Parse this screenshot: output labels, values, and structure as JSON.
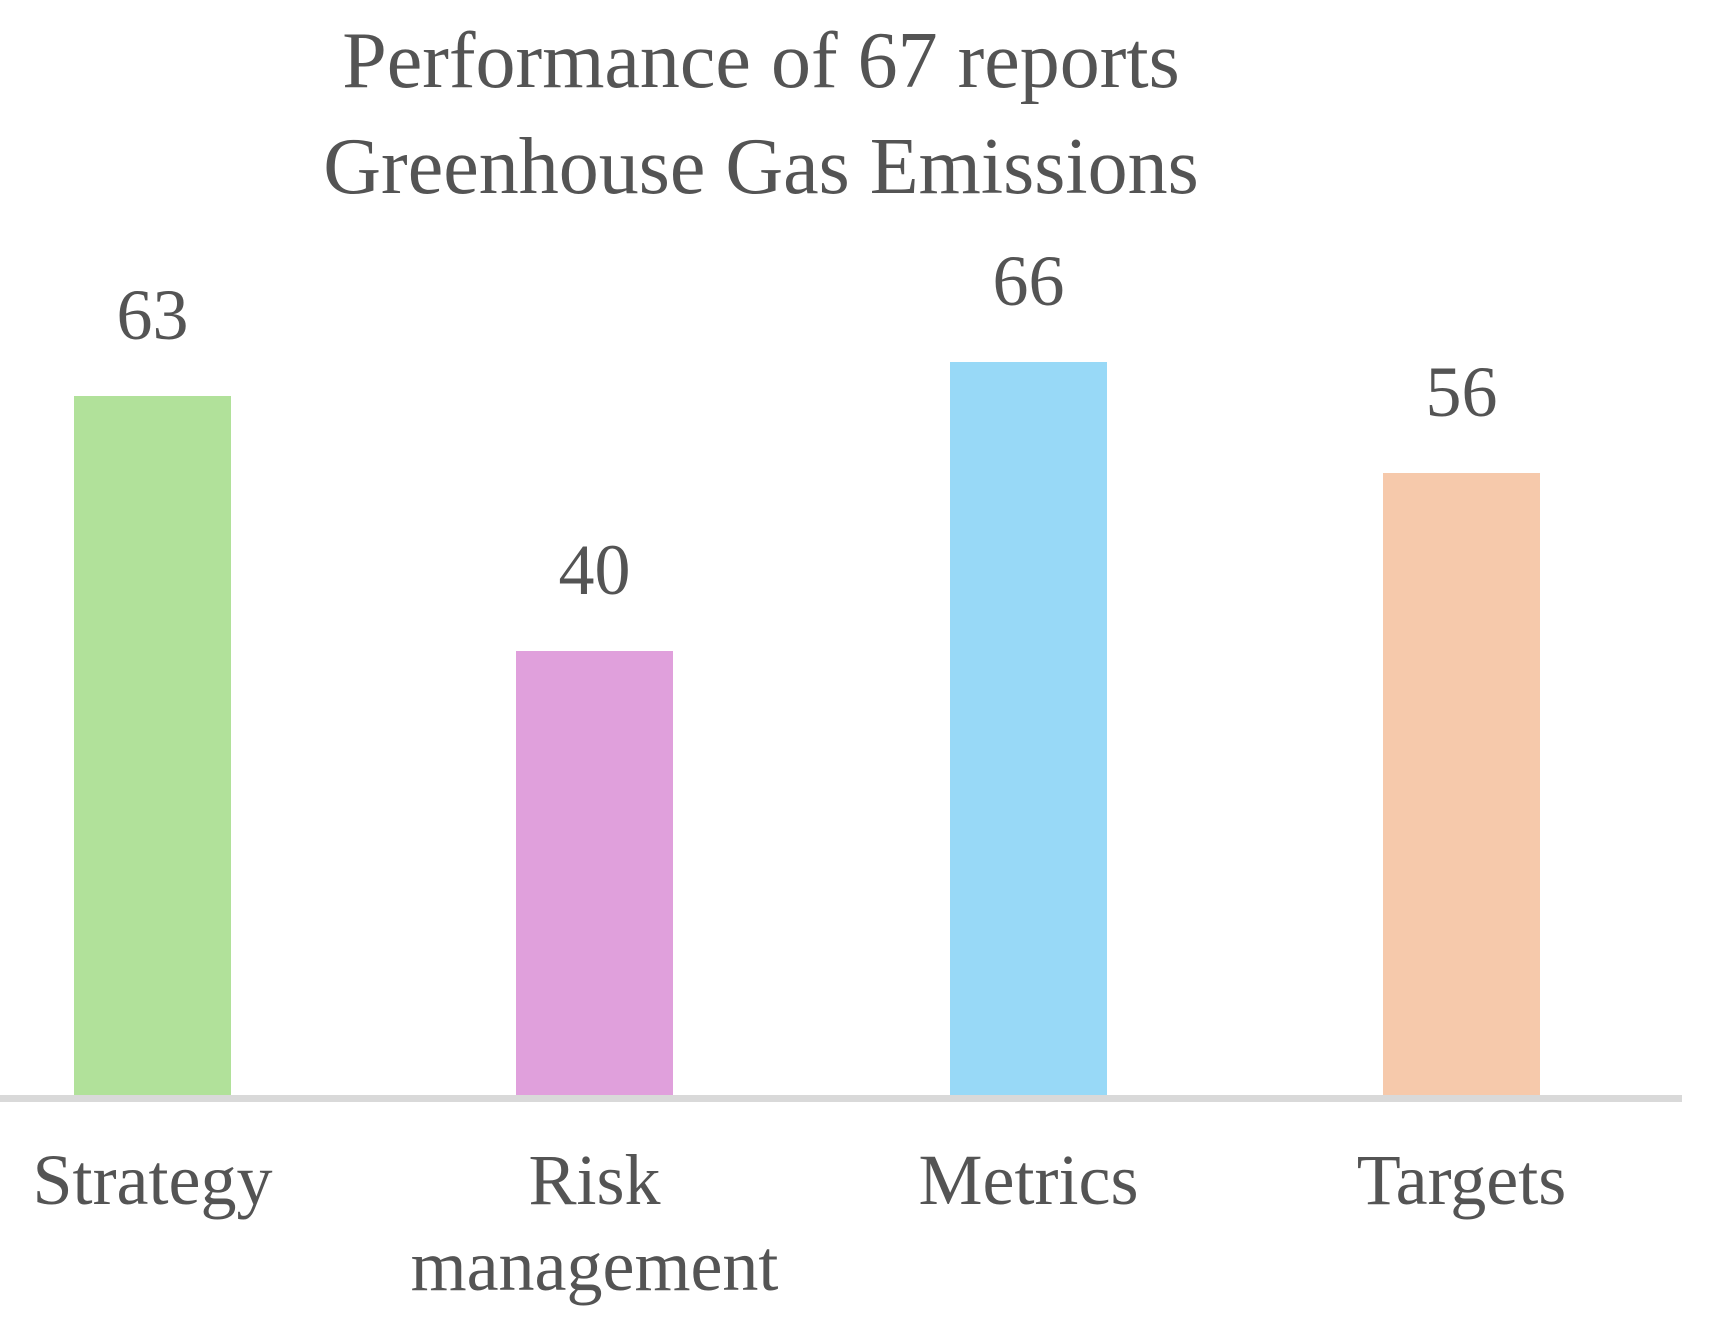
{
  "title": {
    "line1": "Performance of 67 reports",
    "line2": "Greenhouse Gas Emissions"
  },
  "colors": {
    "text": "#545454",
    "background": "#ffffff",
    "axis_line": "#d9d9d9",
    "bar_colors": [
      "#b1e19a",
      "#e0a0dc",
      "#98d9f7",
      "#f6c9ab"
    ]
  },
  "chart_data": {
    "type": "bar",
    "title": "Performance of 67 reports Greenhouse Gas Emissions",
    "categories": [
      "Strategy",
      "Risk management",
      "Metrics",
      "Targets"
    ],
    "values": [
      63,
      40,
      66,
      56
    ],
    "data_labels": [
      63,
      40,
      66,
      56
    ],
    "xlabel": "",
    "ylabel": "",
    "ylim": [
      0,
      70
    ],
    "y_axis_visible": false,
    "gridlines": false,
    "legend": "none",
    "baseline_axis_visible": true
  }
}
